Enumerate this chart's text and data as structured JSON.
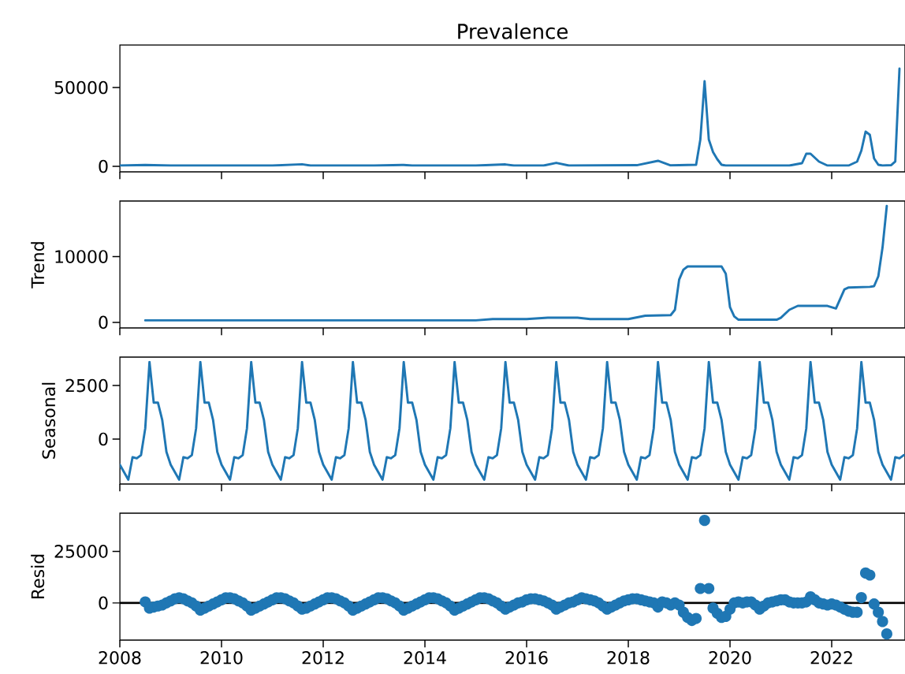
{
  "chart_data": [
    {
      "type": "line",
      "title": "Prevalence",
      "color": "#1f77b4",
      "xlim": [
        "2008-01-01",
        "2023-06-10"
      ],
      "ylim": [
        -3500,
        77000
      ],
      "xticks": [
        "2008",
        "2010",
        "2012",
        "2014",
        "2016",
        "2018",
        "2020",
        "2022"
      ],
      "yticks": [
        0,
        50000
      ],
      "tick_labels": "y",
      "x": [
        "2008-01",
        "2008-07",
        "2009-01",
        "2010-01",
        "2011-01",
        "2011-08",
        "2011-10",
        "2013-01",
        "2013-08",
        "2013-10",
        "2015-01",
        "2015-08",
        "2015-10",
        "2016-05",
        "2016-08",
        "2016-11",
        "2018-03",
        "2018-08",
        "2018-11",
        "2019-05",
        "2019-06",
        "2019-07",
        "2019-08",
        "2019-09",
        "2019-10",
        "2019-11",
        "2019-12",
        "2021-03",
        "2021-06",
        "2021-07",
        "2021-08",
        "2021-10",
        "2021-12",
        "2022-05",
        "2022-07",
        "2022-08",
        "2022-09",
        "2022-10",
        "2022-11",
        "2022-12",
        "2023-01",
        "2023-03",
        "2023-04",
        "2023-05"
      ],
      "values": [
        500,
        900,
        500,
        500,
        500,
        1300,
        500,
        500,
        900,
        500,
        500,
        1200,
        500,
        500,
        2200,
        500,
        700,
        3500,
        600,
        1000,
        17000,
        54000,
        17000,
        9000,
        4500,
        1000,
        500,
        500,
        2000,
        8000,
        8000,
        3000,
        500,
        500,
        3000,
        10000,
        22000,
        20000,
        5000,
        1000,
        500,
        700,
        3000,
        62000
      ]
    },
    {
      "type": "line",
      "ylabel": "Trend",
      "color": "#1f77b4",
      "xlim": [
        "2008-01-01",
        "2023-06-10"
      ],
      "ylim": [
        -850,
        18450
      ],
      "xticks": [
        "2008",
        "2010",
        "2012",
        "2014",
        "2016",
        "2018",
        "2020",
        "2022"
      ],
      "yticks": [
        0,
        10000
      ],
      "tick_labels": "y",
      "x": [
        "2008-07",
        "2009-06",
        "2012-01",
        "2013-06",
        "2015-01",
        "2015-05",
        "2016-01",
        "2016-06",
        "2017-01",
        "2017-04",
        "2018-01",
        "2018-05",
        "2018-11",
        "2018-12",
        "2019-01",
        "2019-02",
        "2019-03",
        "2019-11",
        "2019-12",
        "2020-01",
        "2020-02",
        "2020-03",
        "2020-12",
        "2021-01",
        "2021-03",
        "2021-05",
        "2021-12",
        "2022-02",
        "2022-04",
        "2022-05",
        "2022-10",
        "2022-11",
        "2022-12",
        "2023-01",
        "2023-02"
      ],
      "values": [
        300,
        300,
        300,
        300,
        300,
        500,
        500,
        700,
        700,
        500,
        500,
        1000,
        1100,
        1900,
        6500,
        8000,
        8500,
        8500,
        7400,
        2300,
        900,
        400,
        400,
        700,
        1900,
        2500,
        2500,
        2100,
        5000,
        5300,
        5400,
        5500,
        7000,
        11400,
        17700
      ]
    },
    {
      "type": "line",
      "ylabel": "Seasonal",
      "color": "#1f77b4",
      "xlim": [
        "2008-01-01",
        "2023-06-10"
      ],
      "ylim": [
        -2100,
        3830
      ],
      "xticks": [
        "2008",
        "2010",
        "2012",
        "2014",
        "2016",
        "2018",
        "2020",
        "2022"
      ],
      "yticks": [
        0,
        2500
      ],
      "tick_labels": "y",
      "x": [
        "2008-01",
        "2008-02",
        "2008-03",
        "2008-04",
        "2008-05",
        "2008-06",
        "2008-07",
        "2008-08",
        "2008-09",
        "2008-10",
        "2008-11",
        "2008-12",
        "2009-01",
        "2009-02",
        "2009-03",
        "2009-04",
        "2009-05",
        "2009-06",
        "2009-07",
        "2009-08",
        "2009-09",
        "2009-10",
        "2009-11",
        "2009-12",
        "2010-01",
        "2010-02",
        "2010-03",
        "2010-04",
        "2010-05",
        "2010-06",
        "2010-07",
        "2010-08",
        "2010-09",
        "2010-10",
        "2010-11",
        "2010-12",
        "2011-01",
        "2011-02",
        "2011-03",
        "2011-04",
        "2011-05",
        "2011-06",
        "2011-07",
        "2011-08",
        "2011-09",
        "2011-10",
        "2011-11",
        "2011-12",
        "2012-01",
        "2012-02",
        "2012-03",
        "2012-04",
        "2012-05",
        "2012-06",
        "2012-07",
        "2012-08",
        "2012-09",
        "2012-10",
        "2012-11",
        "2012-12",
        "2013-01",
        "2013-02",
        "2013-03",
        "2013-04",
        "2013-05",
        "2013-06",
        "2013-07",
        "2013-08",
        "2013-09",
        "2013-10",
        "2013-11",
        "2013-12",
        "2014-01",
        "2014-02",
        "2014-03",
        "2014-04",
        "2014-05",
        "2014-06",
        "2014-07",
        "2014-08",
        "2014-09",
        "2014-10",
        "2014-11",
        "2014-12",
        "2015-01",
        "2015-02",
        "2015-03",
        "2015-04",
        "2015-05",
        "2015-06",
        "2015-07",
        "2015-08",
        "2015-09",
        "2015-10",
        "2015-11",
        "2015-12",
        "2016-01",
        "2016-02",
        "2016-03",
        "2016-04",
        "2016-05",
        "2016-06",
        "2016-07",
        "2016-08",
        "2016-09",
        "2016-10",
        "2016-11",
        "2016-12",
        "2017-01",
        "2017-02",
        "2017-03",
        "2017-04",
        "2017-05",
        "2017-06",
        "2017-07",
        "2017-08",
        "2017-09",
        "2017-10",
        "2017-11",
        "2017-12",
        "2018-01",
        "2018-02",
        "2018-03",
        "2018-04",
        "2018-05",
        "2018-06",
        "2018-07",
        "2018-08",
        "2018-09",
        "2018-10",
        "2018-11",
        "2018-12",
        "2019-01",
        "2019-02",
        "2019-03",
        "2019-04",
        "2019-05",
        "2019-06",
        "2019-07",
        "2019-08",
        "2019-09",
        "2019-10",
        "2019-11",
        "2019-12",
        "2020-01",
        "2020-02",
        "2020-03",
        "2020-04",
        "2020-05",
        "2020-06",
        "2020-07",
        "2020-08",
        "2020-09",
        "2020-10",
        "2020-11",
        "2020-12",
        "2021-01",
        "2021-02",
        "2021-03",
        "2021-04",
        "2021-05",
        "2021-06",
        "2021-07",
        "2021-08",
        "2021-09",
        "2021-10",
        "2021-11",
        "2021-12",
        "2022-01",
        "2022-02",
        "2022-03",
        "2022-04",
        "2022-05",
        "2022-06",
        "2022-07",
        "2022-08",
        "2022-09",
        "2022-10",
        "2022-11",
        "2022-12",
        "2023-01",
        "2023-02",
        "2023-03",
        "2023-04",
        "2023-05",
        "2023-06"
      ],
      "values": [
        -1200,
        -1550,
        -1900,
        -850,
        -900,
        -750,
        500,
        3600,
        1700,
        1700,
        900,
        -600,
        -1200,
        -1550,
        -1900,
        -850,
        -900,
        -750,
        500,
        3600,
        1700,
        1700,
        900,
        -600,
        -1200,
        -1550,
        -1900,
        -850,
        -900,
        -750,
        500,
        3600,
        1700,
        1700,
        900,
        -600,
        -1200,
        -1550,
        -1900,
        -850,
        -900,
        -750,
        500,
        3600,
        1700,
        1700,
        900,
        -600,
        -1200,
        -1550,
        -1900,
        -850,
        -900,
        -750,
        500,
        3600,
        1700,
        1700,
        900,
        -600,
        -1200,
        -1550,
        -1900,
        -850,
        -900,
        -750,
        500,
        3600,
        1700,
        1700,
        900,
        -600,
        -1200,
        -1550,
        -1900,
        -850,
        -900,
        -750,
        500,
        3600,
        1700,
        1700,
        900,
        -600,
        -1200,
        -1550,
        -1900,
        -850,
        -900,
        -750,
        500,
        3600,
        1700,
        1700,
        900,
        -600,
        -1200,
        -1550,
        -1900,
        -850,
        -900,
        -750,
        500,
        3600,
        1700,
        1700,
        900,
        -600,
        -1200,
        -1550,
        -1900,
        -850,
        -900,
        -750,
        500,
        3600,
        1700,
        1700,
        900,
        -600,
        -1200,
        -1550,
        -1900,
        -850,
        -900,
        -750,
        500,
        3600,
        1700,
        1700,
        900,
        -600,
        -1200,
        -1550,
        -1900,
        -850,
        -900,
        -750,
        500,
        3600,
        1700,
        1700,
        900,
        -600,
        -1200,
        -1550,
        -1900,
        -850,
        -900,
        -750,
        500,
        3600,
        1700,
        1700,
        900,
        -600,
        -1200,
        -1550,
        -1900,
        -850,
        -900,
        -750,
        500,
        3600,
        1700,
        1700,
        900,
        -600,
        -1200,
        -1550,
        -1900,
        -850,
        -900,
        -750,
        500,
        3600,
        1700,
        1700,
        900,
        -600,
        -1200,
        -1550,
        -1900,
        -850,
        -900,
        -750
      ]
    },
    {
      "type": "scatter",
      "ylabel": "Resid",
      "color": "#1f77b4",
      "marker": "circle",
      "xlim": [
        "2008-01-01",
        "2023-06-10"
      ],
      "ylim": [
        -18000,
        43500
      ],
      "xticks": [
        "2008",
        "2010",
        "2012",
        "2014",
        "2016",
        "2018",
        "2020",
        "2022"
      ],
      "yticks": [
        0,
        25000
      ],
      "ref_lines": [
        {
          "axis": "y",
          "value": 0,
          "color": "#000000"
        }
      ],
      "x": [
        "2008-07",
        "2008-08",
        "2008-09",
        "2008-10",
        "2008-11",
        "2008-12",
        "2009-01",
        "2009-02",
        "2009-03",
        "2009-04",
        "2009-05",
        "2009-06",
        "2009-07",
        "2009-08",
        "2009-09",
        "2009-10",
        "2009-11",
        "2009-12",
        "2010-01",
        "2010-02",
        "2010-03",
        "2010-04",
        "2010-05",
        "2010-06",
        "2010-07",
        "2010-08",
        "2010-09",
        "2010-10",
        "2010-11",
        "2010-12",
        "2011-01",
        "2011-02",
        "2011-03",
        "2011-04",
        "2011-05",
        "2011-06",
        "2011-07",
        "2011-08",
        "2011-09",
        "2011-10",
        "2011-11",
        "2011-12",
        "2012-01",
        "2012-02",
        "2012-03",
        "2012-04",
        "2012-05",
        "2012-06",
        "2012-07",
        "2012-08",
        "2012-09",
        "2012-10",
        "2012-11",
        "2012-12",
        "2013-01",
        "2013-02",
        "2013-03",
        "2013-04",
        "2013-05",
        "2013-06",
        "2013-07",
        "2013-08",
        "2013-09",
        "2013-10",
        "2013-11",
        "2013-12",
        "2014-01",
        "2014-02",
        "2014-03",
        "2014-04",
        "2014-05",
        "2014-06",
        "2014-07",
        "2014-08",
        "2014-09",
        "2014-10",
        "2014-11",
        "2014-12",
        "2015-01",
        "2015-02",
        "2015-03",
        "2015-04",
        "2015-05",
        "2015-06",
        "2015-07",
        "2015-08",
        "2015-09",
        "2015-10",
        "2015-11",
        "2015-12",
        "2016-01",
        "2016-02",
        "2016-03",
        "2016-04",
        "2016-05",
        "2016-06",
        "2016-07",
        "2016-08",
        "2016-09",
        "2016-10",
        "2016-11",
        "2016-12",
        "2017-01",
        "2017-02",
        "2017-03",
        "2017-04",
        "2017-05",
        "2017-06",
        "2017-07",
        "2017-08",
        "2017-09",
        "2017-10",
        "2017-11",
        "2017-12",
        "2018-01",
        "2018-02",
        "2018-03",
        "2018-04",
        "2018-05",
        "2018-06",
        "2018-07",
        "2018-08",
        "2018-09",
        "2018-10",
        "2018-11",
        "2018-12",
        "2019-01",
        "2019-02",
        "2019-03",
        "2019-04",
        "2019-05",
        "2019-06",
        "2019-07",
        "2019-08",
        "2019-09",
        "2019-10",
        "2019-11",
        "2019-12",
        "2020-01",
        "2020-02",
        "2020-03",
        "2020-04",
        "2020-05",
        "2020-06",
        "2020-07",
        "2020-08",
        "2020-09",
        "2020-10",
        "2020-11",
        "2020-12",
        "2021-01",
        "2021-02",
        "2021-03",
        "2021-04",
        "2021-05",
        "2021-06",
        "2021-07",
        "2021-08",
        "2021-09",
        "2021-10",
        "2021-11",
        "2021-12",
        "2022-01",
        "2022-02",
        "2022-03",
        "2022-04",
        "2022-05",
        "2022-06",
        "2022-07",
        "2022-08",
        "2022-09",
        "2022-10",
        "2022-11",
        "2022-12",
        "2023-01",
        "2023-02"
      ],
      "values": [
        500,
        -2500,
        -2000,
        -1500,
        -1000,
        0,
        1000,
        2000,
        2500,
        2000,
        1000,
        0,
        -1500,
        -3500,
        -2500,
        -1500,
        -500,
        500,
        1500,
        2500,
        2500,
        2000,
        1000,
        0,
        -1500,
        -3500,
        -2500,
        -1500,
        -500,
        500,
        1500,
        2500,
        2500,
        2000,
        1000,
        0,
        -1500,
        -3000,
        -2500,
        -1500,
        -500,
        500,
        1500,
        2500,
        2500,
        2000,
        1000,
        0,
        -1500,
        -3500,
        -2500,
        -1500,
        -500,
        500,
        1500,
        2500,
        2500,
        2000,
        1000,
        0,
        -1500,
        -3500,
        -2500,
        -1500,
        -500,
        500,
        1500,
        2500,
        2500,
        2000,
        1000,
        0,
        -1500,
        -3500,
        -2500,
        -1500,
        -500,
        500,
        1500,
        2500,
        2500,
        2000,
        1000,
        0,
        -1500,
        -3000,
        -2000,
        -1000,
        0,
        500,
        1500,
        2000,
        2000,
        1500,
        1000,
        0,
        -1000,
        -3000,
        -2000,
        -1000,
        0,
        500,
        1500,
        2500,
        2000,
        1500,
        1000,
        0,
        -1500,
        -3000,
        -2000,
        -1000,
        0,
        1000,
        1500,
        2000,
        2000,
        1500,
        1000,
        500,
        0,
        -2000,
        500,
        0,
        -1000,
        0,
        -1000,
        -4500,
        -7000,
        -8500,
        -7500,
        7000,
        40000,
        7000,
        -2500,
        -5000,
        -7000,
        -6500,
        -3000,
        0,
        500,
        0,
        500,
        500,
        -1000,
        -3000,
        -1500,
        0,
        500,
        1000,
        1500,
        1500,
        500,
        0,
        0,
        0,
        500,
        3000,
        1500,
        0,
        -500,
        -1000,
        -500,
        -1000,
        -2000,
        -3000,
        -4000,
        -4500,
        -4500,
        2600,
        14500,
        13500,
        -500,
        -4500,
        -9000,
        -15000
      ]
    }
  ]
}
